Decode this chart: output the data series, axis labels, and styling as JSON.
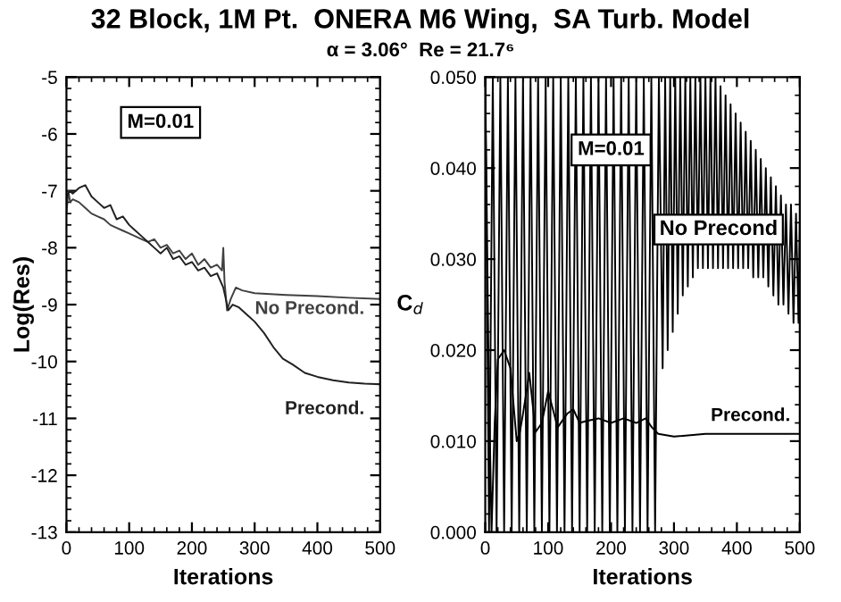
{
  "chart_data": [
    {
      "type": "line",
      "title": "32 Block, 1M Pt.  ONERA M6 Wing,  SA Turb. Model",
      "subtitle": "α = 3.06°  Re = 21.7⁶",
      "xlabel": "Iterations",
      "ylabel": "Log(Res)",
      "xlim": [
        0,
        500
      ],
      "ylim": [
        -13,
        -5
      ],
      "xticks": [
        0,
        100,
        200,
        300,
        400,
        500
      ],
      "yticks": [
        -13,
        -12,
        -11,
        -10,
        -9,
        -8,
        -7,
        -6,
        -5
      ],
      "annotations": [
        "M=0.01"
      ],
      "grid": false,
      "marker": "none",
      "line_style": "solid",
      "series": [
        {
          "name": "No Precond.",
          "color": "#404040",
          "x": [
            0,
            3,
            6,
            10,
            20,
            30,
            40,
            50,
            60,
            70,
            80,
            90,
            100,
            110,
            120,
            130,
            140,
            150,
            160,
            170,
            180,
            190,
            200,
            210,
            220,
            230,
            240,
            248,
            250,
            252,
            256,
            262,
            270,
            280,
            300,
            350,
            400,
            450,
            500
          ],
          "values": [
            -7.4,
            -7.0,
            -7.2,
            -7.15,
            -7.2,
            -7.3,
            -7.4,
            -7.45,
            -7.5,
            -7.6,
            -7.65,
            -7.7,
            -7.75,
            -7.8,
            -7.85,
            -7.9,
            -7.85,
            -8.0,
            -7.95,
            -8.1,
            -8.05,
            -8.2,
            -8.1,
            -8.3,
            -8.2,
            -8.35,
            -8.3,
            -8.4,
            -8.0,
            -8.6,
            -9.1,
            -8.9,
            -8.7,
            -8.75,
            -8.8,
            -8.83,
            -8.85,
            -8.88,
            -8.9
          ]
        },
        {
          "name": "Precond.",
          "color": "#202020",
          "x": [
            0,
            5,
            10,
            20,
            30,
            40,
            50,
            60,
            70,
            80,
            90,
            100,
            110,
            120,
            130,
            140,
            150,
            160,
            170,
            180,
            190,
            200,
            210,
            220,
            230,
            240,
            250,
            258,
            265,
            275,
            290,
            300,
            315,
            330,
            345,
            360,
            380,
            400,
            425,
            450,
            475,
            500
          ],
          "values": [
            -7.1,
            -7.0,
            -7.05,
            -6.95,
            -6.9,
            -7.1,
            -7.2,
            -7.3,
            -7.25,
            -7.5,
            -7.45,
            -7.6,
            -7.7,
            -7.8,
            -7.9,
            -8.0,
            -8.1,
            -8.0,
            -8.2,
            -8.15,
            -8.3,
            -8.25,
            -8.4,
            -8.35,
            -8.5,
            -8.45,
            -8.7,
            -9.1,
            -9.0,
            -9.05,
            -9.2,
            -9.3,
            -9.5,
            -9.75,
            -9.95,
            -10.05,
            -10.2,
            -10.27,
            -10.33,
            -10.37,
            -10.39,
            -10.4
          ]
        }
      ]
    },
    {
      "type": "line",
      "xlabel": "Iterations",
      "ylabel": "C$_{d}$",
      "xlim": [
        0,
        500
      ],
      "ylim": [
        0,
        0.05
      ],
      "xticks": [
        0,
        100,
        200,
        300,
        400,
        500
      ],
      "yticks": [
        {
          "value": 0,
          "label": "0.000"
        },
        {
          "value": 0.01,
          "label": "0.010"
        },
        {
          "value": 0.02,
          "label": "0.020"
        },
        {
          "value": 0.03,
          "label": "0.030"
        },
        {
          "value": 0.04,
          "label": "0.040"
        },
        {
          "value": 0.05,
          "label": "0.050"
        }
      ],
      "annotations": [
        "M=0.01"
      ],
      "grid": false,
      "marker": "none",
      "line_style": "solid",
      "legend": "right",
      "series": [
        {
          "name": "No Precond",
          "color": "#000000",
          "x": [
            0,
            6,
            12,
            18,
            24,
            30,
            36,
            42,
            48,
            54,
            60,
            66,
            72,
            78,
            84,
            90,
            96,
            102,
            108,
            114,
            120,
            126,
            132,
            138,
            144,
            150,
            156,
            162,
            168,
            174,
            180,
            186,
            192,
            198,
            204,
            210,
            216,
            222,
            228,
            234,
            240,
            246,
            252,
            258,
            264,
            270,
            276,
            282,
            286,
            290,
            294,
            298,
            302,
            306,
            310,
            314,
            318,
            322,
            326,
            330,
            334,
            338,
            342,
            346,
            350,
            354,
            358,
            362,
            366,
            370,
            374,
            378,
            382,
            386,
            390,
            394,
            398,
            402,
            406,
            410,
            414,
            418,
            422,
            426,
            430,
            434,
            438,
            442,
            446,
            450,
            454,
            458,
            462,
            466,
            470,
            474,
            478,
            482,
            486,
            490,
            494,
            498,
            500
          ],
          "values": [
            0.05,
            0.0,
            0.05,
            0.0,
            0.05,
            0.0,
            0.05,
            0.0,
            0.05,
            0.0,
            0.05,
            0.0,
            0.05,
            0.0,
            0.05,
            0.0,
            0.05,
            0.0,
            0.05,
            0.0,
            0.05,
            0.0,
            0.05,
            0.0,
            0.05,
            0.0,
            0.05,
            0.0,
            0.05,
            0.0,
            0.05,
            0.0,
            0.05,
            0.0,
            0.05,
            0.0,
            0.05,
            0.0,
            0.05,
            0.0,
            0.05,
            0.0,
            0.05,
            0.0,
            0.05,
            0.0,
            0.05,
            0.018,
            0.05,
            0.02,
            0.05,
            0.022,
            0.05,
            0.024,
            0.05,
            0.026,
            0.05,
            0.027,
            0.05,
            0.028,
            0.05,
            0.029,
            0.05,
            0.029,
            0.05,
            0.029,
            0.05,
            0.029,
            0.05,
            0.029,
            0.049,
            0.029,
            0.048,
            0.029,
            0.047,
            0.029,
            0.046,
            0.029,
            0.045,
            0.029,
            0.044,
            0.029,
            0.043,
            0.028,
            0.042,
            0.028,
            0.041,
            0.028,
            0.04,
            0.027,
            0.039,
            0.026,
            0.038,
            0.025,
            0.037,
            0.025,
            0.036,
            0.024,
            0.036,
            0.023,
            0.035,
            0.023,
            0.034
          ]
        },
        {
          "name": "Precond.",
          "color": "#000000",
          "x": [
            0,
            5,
            10,
            15,
            20,
            30,
            40,
            50,
            55,
            60,
            70,
            80,
            90,
            100,
            115,
            130,
            140,
            150,
            160,
            180,
            200,
            220,
            240,
            255,
            265,
            275,
            300,
            350,
            400,
            500
          ],
          "values": [
            0.05,
            0.02,
            0.0,
            0.012,
            0.019,
            0.02,
            0.018,
            0.01,
            0.011,
            0.013,
            0.0175,
            0.011,
            0.012,
            0.0155,
            0.0115,
            0.013,
            0.0135,
            0.012,
            0.0122,
            0.0125,
            0.012,
            0.0125,
            0.012,
            0.0125,
            0.0115,
            0.0108,
            0.0105,
            0.0108,
            0.0108,
            0.0108
          ]
        }
      ]
    }
  ]
}
